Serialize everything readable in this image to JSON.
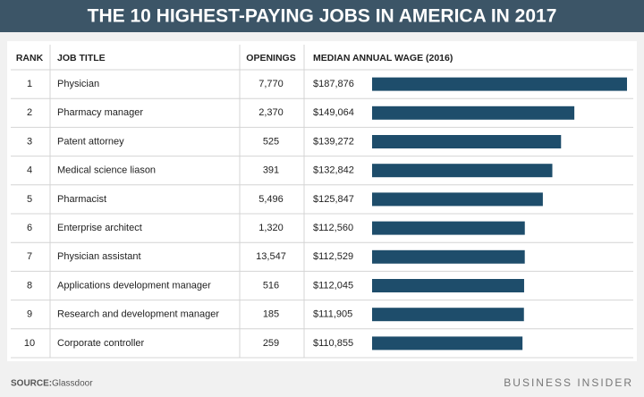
{
  "chart_data": {
    "type": "bar",
    "title": "THE 10 HIGHEST-PAYING JOBS IN AMERICA IN 2017",
    "columns": [
      "RANK",
      "JOB TITLE",
      "OPENINGS",
      "MEDIAN ANNUAL WAGE (2016)"
    ],
    "ranks": [
      1,
      2,
      3,
      4,
      5,
      6,
      7,
      8,
      9,
      10
    ],
    "categories": [
      "Physician",
      "Pharmacy manager",
      "Patent attorney",
      "Medical science liason",
      "Pharmacist",
      "Enterprise architect",
      "Physician assistant",
      "Applications development manager",
      "Research and development manager",
      "Corporate controller"
    ],
    "openings": [
      "7,770",
      "2,370",
      "525",
      "391",
      "5,496",
      "1,320",
      "13,547",
      "516",
      "185",
      "259"
    ],
    "values": [
      187876,
      149064,
      139272,
      132842,
      125847,
      112560,
      112529,
      112045,
      111905,
      110855
    ],
    "value_labels": [
      "$187,876",
      "$149,064",
      "$139,272",
      "$132,842",
      "$125,847",
      "$112,560",
      "$112,529",
      "$112,045",
      "$111,905",
      "$110,855"
    ],
    "color": "#1e4d6b",
    "source_label": "SOURCE:",
    "source": "Glassdoor",
    "brand": "BUSINESS INSIDER"
  }
}
